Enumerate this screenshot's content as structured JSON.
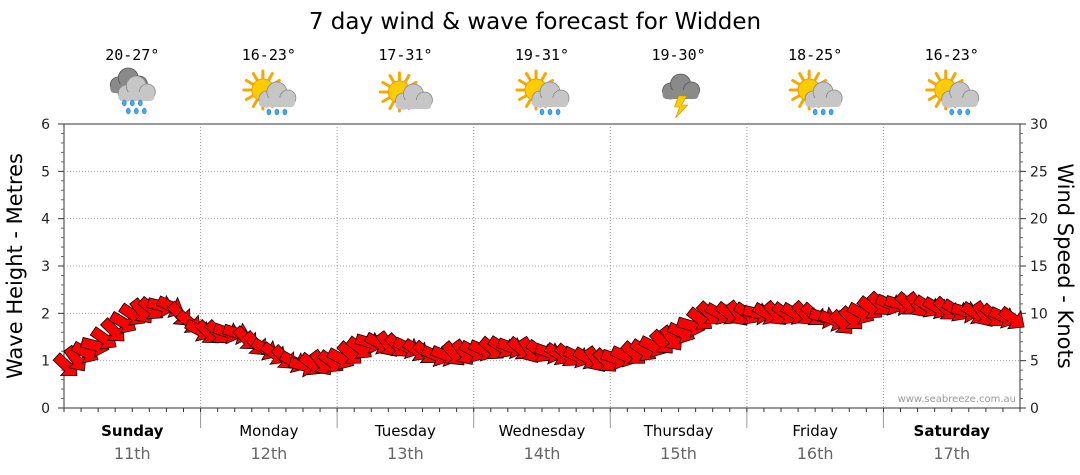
{
  "chart_data": {
    "type": "line",
    "title": "7 day wind & wave forecast for Widden",
    "ylabel_left": "Wave Height - Metres",
    "ylabel_right": "Wind Speed - Knots",
    "ylim_left": [
      0,
      6
    ],
    "ylim_right": [
      0,
      30
    ],
    "yticks_left": [
      "0",
      "1",
      "2",
      "3",
      "4",
      "5",
      "6"
    ],
    "yticks_right": [
      "0",
      "5",
      "10",
      "15",
      "20",
      "25",
      "30"
    ],
    "grid": true,
    "watermark": "www.seabreeze.com.au",
    "days": [
      {
        "name": "Sunday",
        "date": "11th",
        "temp": "20-27°",
        "icon": "rain-cloud-icon",
        "bold": true
      },
      {
        "name": "Monday",
        "date": "12th",
        "temp": "16-23°",
        "icon": "sun-cloud-rain-icon",
        "bold": false
      },
      {
        "name": "Tuesday",
        "date": "13th",
        "temp": "17-31°",
        "icon": "sun-cloud-icon",
        "bold": false
      },
      {
        "name": "Wednesday",
        "date": "14th",
        "temp": "19-31°",
        "icon": "sun-cloud-rain-icon",
        "bold": false
      },
      {
        "name": "Thursday",
        "date": "15th",
        "temp": "19-30°",
        "icon": "storm-cloud-icon",
        "bold": false
      },
      {
        "name": "Friday",
        "date": "16th",
        "temp": "18-25°",
        "icon": "sun-cloud-rain-icon",
        "bold": false
      },
      {
        "name": "Saturday",
        "date": "17th",
        "temp": "16-23°",
        "icon": "sun-cloud-rain-icon",
        "bold": true
      }
    ],
    "series": [
      {
        "name": "Wind Speed",
        "unit": "knots",
        "axis": "right",
        "color": "#ff0000",
        "x_days": [
          0.0,
          0.25,
          0.5,
          0.75,
          1.0,
          1.25,
          1.5,
          1.75,
          2.0,
          2.25,
          2.5,
          2.75,
          3.0,
          3.25,
          3.5,
          3.75,
          4.0,
          4.25,
          4.5,
          4.75,
          5.0,
          5.25,
          5.5,
          5.75,
          6.0,
          6.25,
          6.5,
          6.75,
          7.0
        ],
        "values": [
          4.5,
          7.0,
          10.0,
          11.0,
          8.0,
          8.0,
          6.0,
          4.5,
          5.0,
          7.0,
          6.5,
          5.5,
          6.0,
          6.5,
          6.0,
          5.5,
          5.0,
          6.0,
          7.5,
          10.0,
          10.0,
          10.0,
          10.0,
          9.0,
          11.0,
          11.0,
          10.5,
          10.0,
          9.5
        ]
      }
    ]
  }
}
